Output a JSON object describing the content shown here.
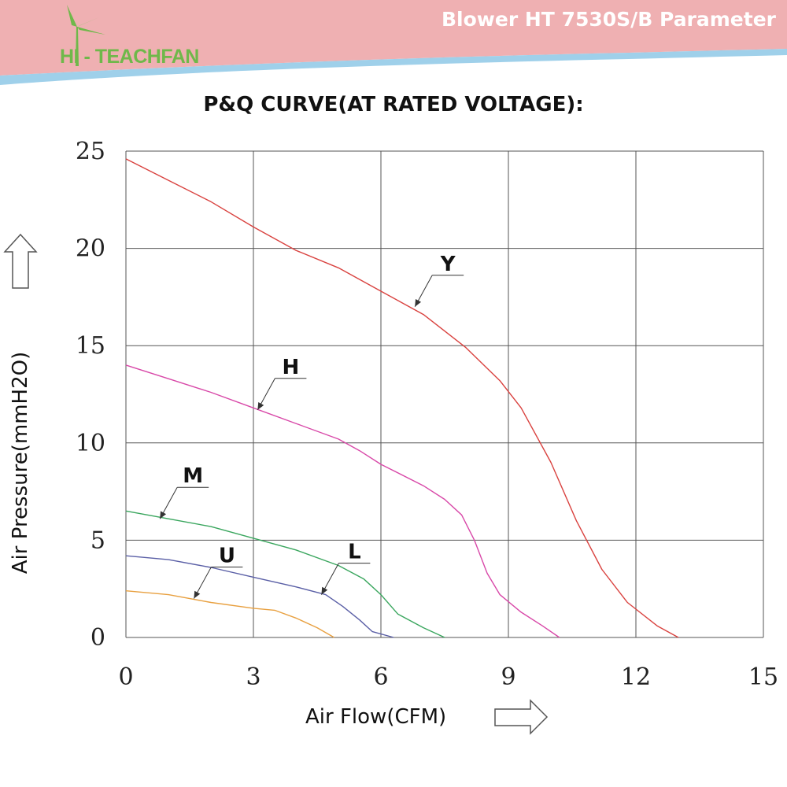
{
  "header": {
    "brand": "HI - TEACHFAN",
    "title": "Blower HT 7530S/B Parameter"
  },
  "colors": {
    "header_pink": "#efb0b2",
    "header_blue": "#9fd0ea",
    "brand_green": "#6fb84a",
    "grid": "#555555"
  },
  "chart_data": {
    "type": "line",
    "title": "P&Q CURVE(AT RATED VOLTAGE):",
    "xlabel": "Air Flow(CFM)",
    "ylabel": "Air Pressure(mmH2O)",
    "xlim": [
      0,
      15
    ],
    "ylim": [
      0,
      25
    ],
    "xticks": [
      "0",
      "3",
      "6",
      "9",
      "12",
      "15"
    ],
    "yticks": [
      "0",
      "5",
      "10",
      "15",
      "20",
      "25"
    ],
    "grid": true,
    "series": [
      {
        "name": "Y",
        "color": "#d9423f",
        "points": [
          [
            0,
            24.6
          ],
          [
            1,
            23.5
          ],
          [
            2,
            22.4
          ],
          [
            3,
            21.1
          ],
          [
            4,
            19.9
          ],
          [
            5,
            19.0
          ],
          [
            6,
            17.8
          ],
          [
            7,
            16.6
          ],
          [
            8,
            14.9
          ],
          [
            8.8,
            13.2
          ],
          [
            9.3,
            11.8
          ],
          [
            10,
            9.0
          ],
          [
            10.6,
            6.0
          ],
          [
            11.2,
            3.5
          ],
          [
            11.8,
            1.8
          ],
          [
            12.5,
            0.6
          ],
          [
            13.0,
            0
          ]
        ]
      },
      {
        "name": "H",
        "color": "#d848a8",
        "points": [
          [
            0,
            14.0
          ],
          [
            1,
            13.3
          ],
          [
            2,
            12.6
          ],
          [
            3,
            11.8
          ],
          [
            4,
            11.0
          ],
          [
            5,
            10.2
          ],
          [
            5.5,
            9.6
          ],
          [
            6,
            8.9
          ],
          [
            7,
            7.8
          ],
          [
            7.5,
            7.1
          ],
          [
            7.9,
            6.3
          ],
          [
            8.2,
            5.0
          ],
          [
            8.5,
            3.3
          ],
          [
            8.8,
            2.2
          ],
          [
            9.3,
            1.3
          ],
          [
            9.8,
            0.6
          ],
          [
            10.2,
            0
          ]
        ]
      },
      {
        "name": "M",
        "color": "#3aa65e",
        "points": [
          [
            0,
            6.5
          ],
          [
            1,
            6.1
          ],
          [
            2,
            5.7
          ],
          [
            3,
            5.1
          ],
          [
            4,
            4.5
          ],
          [
            5,
            3.7
          ],
          [
            5.6,
            3.0
          ],
          [
            6,
            2.2
          ],
          [
            6.4,
            1.2
          ],
          [
            7.0,
            0.5
          ],
          [
            7.5,
            0
          ]
        ]
      },
      {
        "name": "L",
        "color": "#5a5fa6",
        "points": [
          [
            0,
            4.2
          ],
          [
            1,
            4.0
          ],
          [
            2,
            3.6
          ],
          [
            3,
            3.1
          ],
          [
            4,
            2.6
          ],
          [
            4.7,
            2.2
          ],
          [
            5.1,
            1.6
          ],
          [
            5.5,
            0.9
          ],
          [
            5.8,
            0.3
          ],
          [
            6.3,
            0
          ]
        ]
      },
      {
        "name": "U",
        "color": "#e8a040",
        "points": [
          [
            0,
            2.4
          ],
          [
            1,
            2.2
          ],
          [
            2,
            1.8
          ],
          [
            3,
            1.5
          ],
          [
            3.5,
            1.4
          ],
          [
            4,
            1.0
          ],
          [
            4.5,
            0.5
          ],
          [
            4.9,
            0
          ]
        ]
      }
    ],
    "annotations": [
      {
        "text": "Y",
        "series": "Y",
        "at": [
          6.8,
          17.0
        ]
      },
      {
        "text": "H",
        "series": "H",
        "at": [
          3.1,
          11.7
        ]
      },
      {
        "text": "M",
        "series": "M",
        "at": [
          0.8,
          6.1
        ]
      },
      {
        "text": "U",
        "series": "U",
        "at": [
          1.6,
          2.0
        ]
      },
      {
        "text": "L",
        "series": "L",
        "at": [
          4.6,
          2.2
        ]
      }
    ]
  }
}
